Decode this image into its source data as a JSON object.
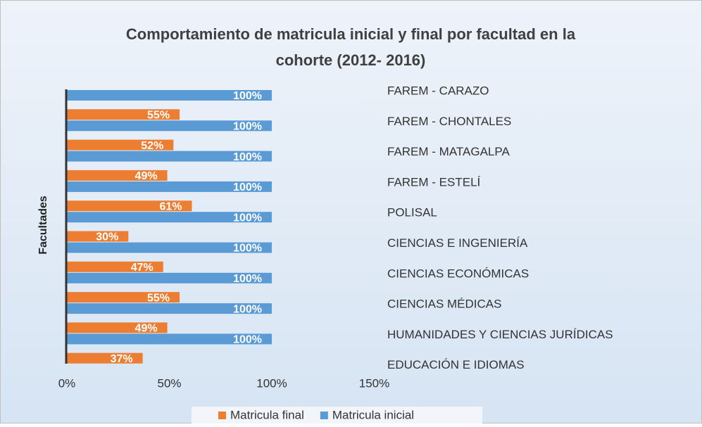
{
  "chart_data": {
    "type": "hbar",
    "title": "Comportamiento de matricula inicial  y final por facultad en  la",
    "subtitle": "cohorte (2012- 2016)",
    "y_label": "Facultades",
    "categories": [
      "FAREM - CARAZO",
      "FAREM - CHONTALES",
      "FAREM - MATAGALPA",
      "FAREM - ESTELÍ",
      "POLISAL",
      "CIENCIAS E INGENIERÍA",
      "CIENCIAS ECONÓMICAS",
      "CIENCIAS MÉDICAS",
      "HUMANIDADES Y CIENCIAS JURÍDICAS",
      "EDUCACIÓN E IDIOMAS"
    ],
    "series": [
      {
        "name": "Matricula final",
        "color": "#ed7d31",
        "values": [
          null,
          55,
          52,
          49,
          61,
          30,
          47,
          55,
          49,
          37
        ],
        "value_labels": [
          null,
          "55%",
          "52%",
          "49%",
          "61%",
          "30%",
          "47%",
          "55%",
          "49%",
          "37%"
        ]
      },
      {
        "name": "Matricula inicial",
        "color": "#5b9bd5",
        "values": [
          100,
          100,
          100,
          100,
          100,
          100,
          100,
          100,
          100,
          null
        ],
        "value_labels": [
          "100%",
          "100%",
          "100%",
          "100%",
          "100%",
          "100%",
          "100%",
          "100%",
          "100%",
          null
        ]
      }
    ],
    "xlim": [
      0,
      150
    ],
    "xticks": [
      {
        "value": 0,
        "label": "0%"
      },
      {
        "value": 50,
        "label": "50%"
      },
      {
        "value": 100,
        "label": "100%"
      },
      {
        "value": 150,
        "label": "150%"
      }
    ],
    "legend": "bottom"
  }
}
